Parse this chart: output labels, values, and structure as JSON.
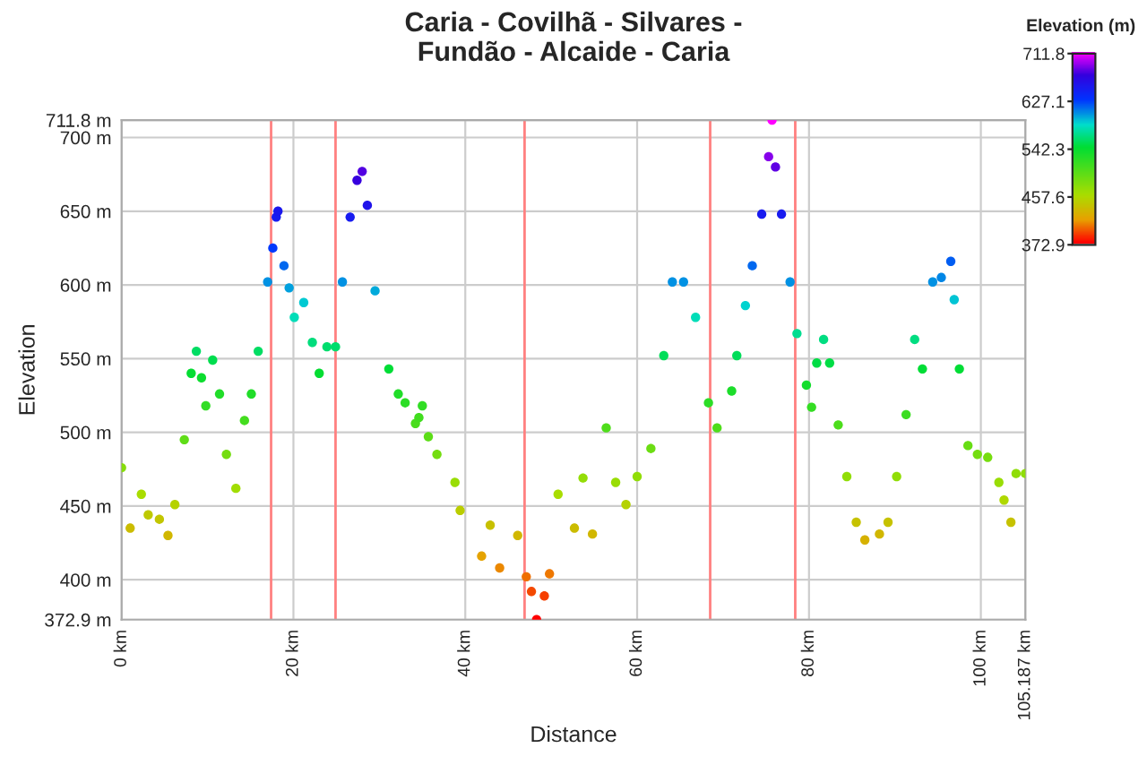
{
  "chart_data": {
    "type": "scatter",
    "title": "Caria - Covilhã - Silvares -\nFundão - Alcaide - Caria",
    "xlabel": "Distance",
    "ylabel": "Elevation",
    "clabel": "Elevation (m)",
    "x": [
      0,
      1,
      2.3,
      3.1,
      4.4,
      5.4,
      6.2,
      7.3,
      8.1,
      8.7,
      9.3,
      9.8,
      10.6,
      11.4,
      12.2,
      13.3,
      14.3,
      15.1,
      15.9,
      17.0,
      17.6,
      18.0,
      18.2,
      18.9,
      19.5,
      20.1,
      21.2,
      22.2,
      23.0,
      23.9,
      24.9,
      25.7,
      26.6,
      27.4,
      28.0,
      28.6,
      29.5,
      31.1,
      32.2,
      33.0,
      34.2,
      34.6,
      35.0,
      35.7,
      36.7,
      38.8,
      39.4,
      41.9,
      42.9,
      44.0,
      46.1,
      47.1,
      47.7,
      48.3,
      49.2,
      49.8,
      50.8,
      52.7,
      53.7,
      54.8,
      56.4,
      57.5,
      58.7,
      60.0,
      61.6,
      63.1,
      64.1,
      65.4,
      66.8,
      68.3,
      69.3,
      71.0,
      71.6,
      72.6,
      73.4,
      74.5,
      75.3,
      75.7,
      76.1,
      76.8,
      77.8,
      78.6,
      79.7,
      80.3,
      80.9,
      81.7,
      82.4,
      83.4,
      84.4,
      85.5,
      86.5,
      88.2,
      89.2,
      90.2,
      91.3,
      92.3,
      93.2,
      94.4,
      95.4,
      96.5,
      96.9,
      97.5,
      98.5,
      99.6,
      100.8,
      102.1,
      102.7,
      103.5,
      104.1,
      105.187
    ],
    "values": [
      476,
      435,
      458,
      444,
      441,
      430,
      451,
      495,
      540,
      555,
      537,
      518,
      549,
      526,
      485,
      462,
      508,
      526,
      555,
      602,
      625,
      646,
      650,
      613,
      598,
      578,
      588,
      561,
      540,
      558,
      558,
      602,
      646,
      671,
      677,
      654,
      596,
      543,
      526,
      520,
      506,
      510,
      518,
      497,
      485,
      466,
      447,
      416,
      437,
      408,
      430,
      402,
      392,
      372.9,
      389,
      404,
      458,
      435,
      469,
      431,
      503,
      466,
      451,
      470,
      489,
      552,
      602,
      602,
      578,
      520,
      503,
      528,
      552,
      586,
      613,
      648,
      687,
      711.8,
      680,
      648,
      602,
      567,
      532,
      517,
      547,
      563,
      547,
      505,
      470,
      439,
      427,
      431,
      439,
      470,
      512,
      563,
      543,
      602,
      605,
      616,
      590,
      543,
      491,
      485,
      483,
      466,
      454,
      439,
      472,
      472
    ],
    "xlim": [
      0,
      105.187
    ],
    "ylim": [
      372.9,
      711.8
    ],
    "xticks": [
      {
        "value": 0,
        "label": "0 km"
      },
      {
        "value": 20,
        "label": "20 km"
      },
      {
        "value": 40,
        "label": "40 km"
      },
      {
        "value": 60,
        "label": "60 km"
      },
      {
        "value": 80,
        "label": "80 km"
      },
      {
        "value": 100,
        "label": "100 km"
      },
      {
        "value": 105.187,
        "label": "105.187 km"
      }
    ],
    "yticks": [
      {
        "value": 372.9,
        "label": "372.9 m"
      },
      {
        "value": 400,
        "label": "400 m"
      },
      {
        "value": 450,
        "label": "450 m"
      },
      {
        "value": 500,
        "label": "500 m"
      },
      {
        "value": 550,
        "label": "550 m"
      },
      {
        "value": 600,
        "label": "600 m"
      },
      {
        "value": 650,
        "label": "650 m"
      },
      {
        "value": 700,
        "label": "700 m"
      },
      {
        "value": 711.8,
        "label": "711.8 m"
      }
    ],
    "clim": [
      372.9,
      711.8
    ],
    "cticks": [
      372.9,
      457.6,
      542.3,
      627.1,
      711.8
    ],
    "ref_lines": [
      {
        "axis": "x",
        "value": 17.4,
        "color": "#ff8080"
      },
      {
        "axis": "x",
        "value": 24.9,
        "color": "#ff8080"
      },
      {
        "axis": "x",
        "value": 46.9,
        "color": "#ff8080"
      },
      {
        "axis": "x",
        "value": 68.5,
        "color": "#ff8080"
      },
      {
        "axis": "x",
        "value": 78.4,
        "color": "#ff8080"
      }
    ],
    "grid": true,
    "marker": "circle"
  }
}
